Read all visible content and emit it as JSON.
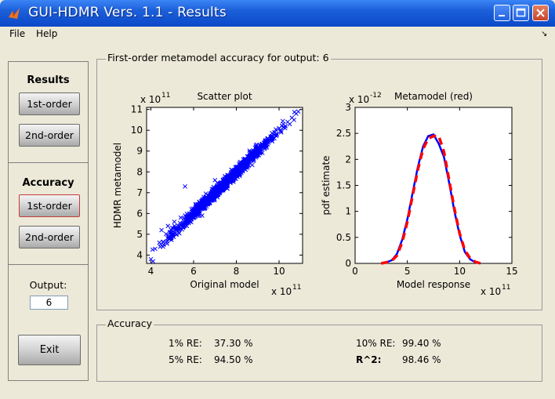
{
  "window": {
    "title": "GUI-HDMR Vers. 1.1 - Results"
  },
  "menu": {
    "file": "File",
    "help": "Help"
  },
  "left": {
    "results_label": "Results",
    "results_first": "1st-order",
    "results_second": "2nd-order",
    "accuracy_label": "Accuracy",
    "accuracy_first": "1st-order",
    "accuracy_second": "2nd-order",
    "output_label": "Output:",
    "output_value": "6",
    "exit_label": "Exit"
  },
  "plot_panel": {
    "title": "First-order metamodel accuracy for output: 6"
  },
  "accuracy_panel": {
    "title": "Accuracy",
    "items": [
      {
        "label": "1% RE:",
        "value": "37.30 %"
      },
      {
        "label": "5% RE:",
        "value": "94.50 %"
      },
      {
        "label": "10% RE:",
        "value": "99.40 %"
      },
      {
        "label": "R^2:",
        "value": "98.46 %"
      }
    ]
  },
  "chart_data": [
    {
      "type": "scatter",
      "title": "Scatter plot",
      "xlabel": "Original model",
      "ylabel": "HDMR metamodel",
      "x_exponent_label": "x 10",
      "x_exponent": "11",
      "y_exponent_label": "x 10",
      "y_exponent": "11",
      "xlim": [
        3.8,
        11.1
      ],
      "ylim": [
        3.6,
        11.1
      ],
      "xticks": [
        "4",
        "6",
        "8",
        "10"
      ],
      "yticks": [
        "4",
        "5",
        "6",
        "7",
        "8",
        "9",
        "10",
        "11"
      ],
      "marker": "x",
      "color": "#0000ff",
      "trend": {
        "slope": 1.0,
        "intercept": 0.0,
        "spread": 0.25,
        "x_range": [
          3.9,
          10.9
        ]
      },
      "points": [
        [
          4.0,
          3.8
        ],
        [
          4.2,
          4.3
        ],
        [
          4.4,
          4.6
        ],
        [
          4.5,
          5.2
        ],
        [
          4.6,
          4.5
        ],
        [
          4.8,
          5.4
        ],
        [
          4.9,
          4.8
        ],
        [
          5.0,
          5.3
        ],
        [
          5.1,
          5.6
        ],
        [
          5.2,
          5.0
        ],
        [
          5.3,
          5.4
        ],
        [
          5.4,
          5.8
        ],
        [
          5.5,
          5.5
        ],
        [
          5.6,
          5.9
        ],
        [
          5.7,
          5.6
        ],
        [
          5.8,
          6.0
        ],
        [
          5.9,
          6.2
        ],
        [
          6.0,
          5.8
        ],
        [
          6.1,
          6.4
        ],
        [
          6.2,
          6.1
        ],
        [
          6.3,
          6.3
        ],
        [
          6.4,
          6.6
        ],
        [
          6.5,
          6.4
        ],
        [
          6.6,
          6.7
        ],
        [
          6.7,
          6.5
        ],
        [
          6.8,
          6.9
        ],
        [
          6.9,
          6.8
        ],
        [
          7.0,
          7.1
        ],
        [
          7.1,
          6.9
        ],
        [
          7.2,
          7.3
        ],
        [
          7.3,
          7.1
        ],
        [
          7.4,
          7.5
        ],
        [
          7.5,
          7.4
        ],
        [
          7.6,
          7.7
        ],
        [
          7.7,
          7.5
        ],
        [
          7.8,
          7.9
        ],
        [
          7.9,
          7.8
        ],
        [
          8.0,
          8.1
        ],
        [
          8.1,
          7.9
        ],
        [
          8.2,
          8.3
        ],
        [
          8.3,
          8.2
        ],
        [
          8.4,
          8.5
        ],
        [
          8.5,
          8.3
        ],
        [
          8.6,
          8.7
        ],
        [
          8.7,
          8.6
        ],
        [
          8.8,
          8.9
        ],
        [
          8.9,
          8.8
        ],
        [
          9.0,
          9.1
        ],
        [
          9.1,
          8.9
        ],
        [
          9.2,
          9.3
        ],
        [
          9.3,
          9.2
        ],
        [
          9.4,
          9.5
        ],
        [
          9.5,
          9.4
        ],
        [
          9.6,
          9.7
        ],
        [
          9.7,
          9.6
        ],
        [
          9.8,
          9.9
        ],
        [
          9.9,
          9.8
        ],
        [
          10.0,
          10.1
        ],
        [
          10.1,
          9.9
        ],
        [
          10.2,
          10.3
        ],
        [
          10.3,
          10.2
        ],
        [
          10.4,
          10.4
        ],
        [
          10.5,
          10.3
        ],
        [
          10.6,
          10.6
        ],
        [
          10.7,
          10.5
        ],
        [
          10.8,
          10.8
        ],
        [
          10.9,
          10.9
        ],
        [
          5.6,
          7.3
        ],
        [
          4.1,
          3.7
        ],
        [
          7.0,
          7.6
        ],
        [
          6.4,
          5.9
        ]
      ]
    },
    {
      "type": "line",
      "title": "Metamodel (red)",
      "xlabel": "Model response",
      "ylabel": "pdf estimate",
      "x_exponent_label": "x 10",
      "x_exponent": "11",
      "y_exponent_label": "x 10",
      "y_exponent": "-12",
      "xlim": [
        0,
        15
      ],
      "ylim": [
        0,
        3
      ],
      "xticks": [
        "0",
        "5",
        "10",
        "15"
      ],
      "yticks": [
        "0",
        "0.5",
        "1",
        "1.5",
        "2",
        "2.5",
        "3"
      ],
      "x": [
        2.5,
        3.0,
        3.5,
        4.0,
        4.5,
        5.0,
        5.5,
        6.0,
        6.5,
        7.0,
        7.5,
        8.0,
        8.5,
        9.0,
        9.5,
        10.0,
        10.5,
        11.0,
        11.5,
        12.0
      ],
      "series": [
        {
          "color": "#0000ff",
          "style": "solid",
          "values": [
            0.0,
            0.02,
            0.06,
            0.18,
            0.45,
            0.85,
            1.35,
            1.85,
            2.25,
            2.45,
            2.48,
            2.3,
            2.05,
            1.55,
            1.0,
            0.55,
            0.22,
            0.08,
            0.02,
            0.0
          ]
        },
        {
          "color": "#ff0000",
          "style": "dashed",
          "values": [
            0.0,
            0.02,
            0.05,
            0.15,
            0.4,
            0.8,
            1.3,
            1.8,
            2.2,
            2.4,
            2.45,
            2.45,
            2.15,
            1.6,
            1.05,
            0.58,
            0.25,
            0.1,
            0.03,
            0.0
          ]
        }
      ]
    }
  ]
}
